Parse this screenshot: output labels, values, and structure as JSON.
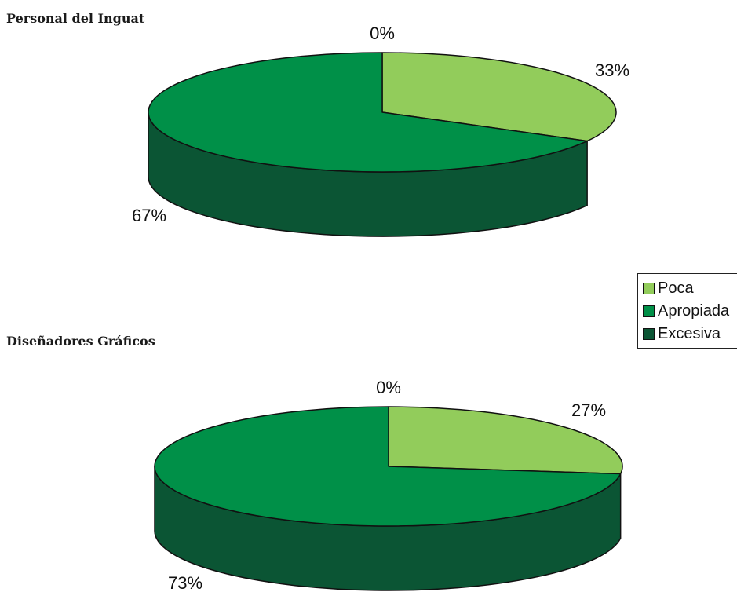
{
  "colors": {
    "poca": "#92CC5B",
    "apropiada": "#009048",
    "excesiva": "#0B5534",
    "excesiva_side_light": "#04663B",
    "outline": "#111111"
  },
  "legend": {
    "items": [
      {
        "label": "Poca",
        "color": "#92CC5B"
      },
      {
        "label": "Apropiada",
        "color": "#009048"
      },
      {
        "label": "Excesiva",
        "color": "#0B5534"
      }
    ]
  },
  "chart_data": [
    {
      "type": "pie",
      "title": "Personal del Inguat",
      "categories": [
        "Poca",
        "Apropiada",
        "Excesiva"
      ],
      "values": [
        33,
        67,
        0
      ],
      "data_labels": [
        "33%",
        "67%",
        "0%"
      ],
      "legend_position": "right"
    },
    {
      "type": "pie",
      "title": "Diseñadores Gráficos",
      "categories": [
        "Poca",
        "Apropiada",
        "Excesiva"
      ],
      "values": [
        27,
        73,
        0
      ],
      "data_labels": [
        "27%",
        "73%",
        "0%"
      ],
      "legend_position": "right"
    }
  ]
}
